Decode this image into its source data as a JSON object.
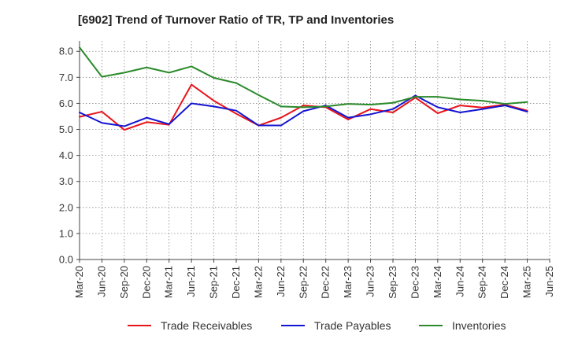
{
  "chart_data": {
    "type": "line",
    "title": "[6902]  Trend of Turnover Ratio of TR, TP and Inventories",
    "xlabel": "",
    "ylabel": "",
    "x": [
      "Mar-20",
      "Jun-20",
      "Sep-20",
      "Dec-20",
      "Mar-21",
      "Jun-21",
      "Sep-21",
      "Dec-21",
      "Mar-22",
      "Jun-22",
      "Sep-22",
      "Dec-22",
      "Mar-23",
      "Jun-23",
      "Sep-23",
      "Dec-23",
      "Mar-24",
      "Jun-24",
      "Sep-24",
      "Dec-24",
      "Mar-25",
      "Jun-25"
    ],
    "ylim": [
      0,
      8.4
    ],
    "yticks": [
      "0.0",
      "1.0",
      "2.0",
      "3.0",
      "4.0",
      "5.0",
      "6.0",
      "7.0",
      "8.0"
    ],
    "grid": true,
    "legend_position": "bottom",
    "series": [
      {
        "name": "Trade Receivables",
        "color": "#e8141b",
        "values": [
          5.48,
          5.68,
          4.98,
          5.28,
          5.18,
          6.72,
          6.1,
          5.6,
          5.15,
          5.45,
          5.92,
          5.85,
          5.38,
          5.78,
          5.65,
          6.22,
          5.62,
          5.92,
          5.84,
          5.95,
          5.72,
          null
        ]
      },
      {
        "name": "Trade Payables",
        "color": "#1414d2",
        "values": [
          5.65,
          5.25,
          5.12,
          5.45,
          5.2,
          6.0,
          5.88,
          5.72,
          5.15,
          5.15,
          5.7,
          5.92,
          5.45,
          5.58,
          5.78,
          6.3,
          5.85,
          5.65,
          5.78,
          5.92,
          5.68,
          null
        ]
      },
      {
        "name": "Inventories",
        "color": "#2b8a2b",
        "values": [
          8.15,
          7.02,
          7.18,
          7.38,
          7.18,
          7.42,
          6.98,
          6.78,
          6.32,
          5.88,
          5.85,
          5.88,
          5.98,
          5.95,
          6.02,
          6.25,
          6.25,
          6.15,
          6.1,
          5.98,
          6.05,
          null
        ]
      }
    ]
  }
}
